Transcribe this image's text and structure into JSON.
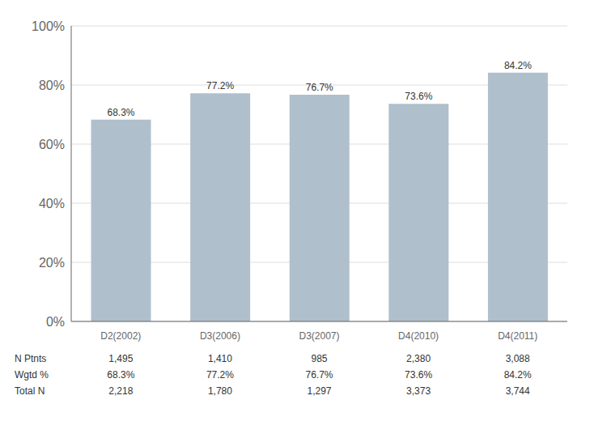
{
  "chart_data": {
    "type": "bar",
    "categories": [
      "D2(2002)",
      "D3(2006)",
      "D3(2007)",
      "D4(2010)",
      "D4(2011)"
    ],
    "values": [
      68.3,
      77.2,
      76.7,
      73.6,
      84.2
    ],
    "value_labels": [
      "68.3%",
      "77.2%",
      "76.7%",
      "73.6%",
      "84.2%"
    ],
    "data_labels": true,
    "color": "#b0bfcc",
    "ylim": [
      0,
      100
    ],
    "yticks": [
      {
        "value": 0,
        "label": "0%"
      },
      {
        "value": 20,
        "label": "20%"
      },
      {
        "value": 40,
        "label": "40%"
      },
      {
        "value": 60,
        "label": "60%"
      },
      {
        "value": 80,
        "label": "80%"
      },
      {
        "value": 100,
        "label": "100%"
      }
    ],
    "grid": true,
    "table": [
      {
        "label": "N Ptnts",
        "values": [
          1495,
          1410,
          985,
          2380,
          3088
        ],
        "value_labels": [
          "1,495",
          "1,410",
          "985",
          "2,380",
          "3,088"
        ]
      },
      {
        "label": "Wgtd %",
        "values": [
          68.3,
          77.2,
          76.7,
          73.6,
          84.2
        ],
        "value_labels": [
          "68.3%",
          "77.2%",
          "76.7%",
          "73.6%",
          "84.2%"
        ]
      },
      {
        "label": "Total N",
        "values": [
          2218,
          1780,
          1297,
          3373,
          3744
        ],
        "value_labels": [
          "2,218",
          "1,780",
          "1,297",
          "3,373",
          "3,744"
        ]
      }
    ]
  }
}
